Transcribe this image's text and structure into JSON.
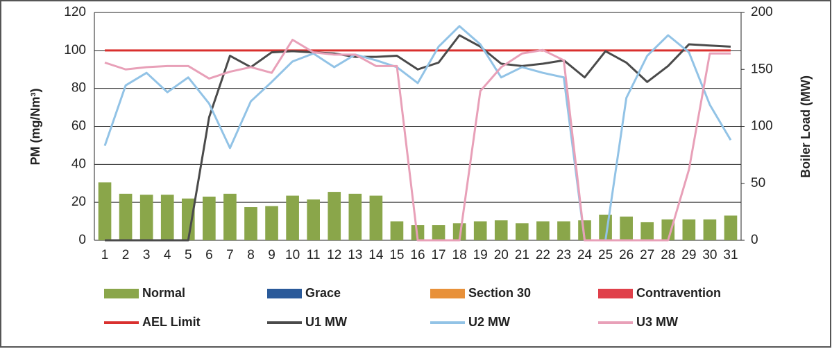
{
  "chart_data": {
    "type": "combo",
    "y_label": "PM (mg/Nm³)",
    "y2_label": "Boiler Load (MW)",
    "categories": [
      "1",
      "2",
      "3",
      "4",
      "5",
      "6",
      "7",
      "8",
      "9",
      "10",
      "11",
      "12",
      "13",
      "14",
      "15",
      "16",
      "17",
      "18",
      "19",
      "20",
      "21",
      "22",
      "23",
      "24",
      "25",
      "26",
      "27",
      "28",
      "29",
      "30",
      "31"
    ],
    "ylim": [
      0,
      120
    ],
    "yticks": [
      0,
      20,
      40,
      60,
      80,
      100,
      120
    ],
    "y2lim": [
      0,
      200
    ],
    "y2ticks": [
      0,
      50,
      100,
      150,
      200
    ],
    "grid": true,
    "series": [
      {
        "name": "Normal",
        "type": "bar",
        "color": "#8aa64a",
        "values": [
          30.5,
          24.5,
          24,
          24,
          22,
          23,
          24.5,
          17.5,
          18,
          23.5,
          21.5,
          25.5,
          24.5,
          23.5,
          10,
          8,
          8,
          9,
          10,
          10.5,
          9,
          10,
          10,
          10.5,
          13.5,
          12.5,
          9.5,
          11,
          11,
          11,
          13
        ]
      },
      {
        "name": "Grace",
        "type": "bar",
        "color": "#2a5a9a",
        "values": [
          null,
          null,
          null,
          null,
          null,
          null,
          null,
          null,
          null,
          null,
          null,
          null,
          null,
          null,
          null,
          null,
          null,
          null,
          null,
          null,
          null,
          null,
          null,
          null,
          null,
          null,
          null,
          null,
          null,
          null,
          null
        ]
      },
      {
        "name": "Section 30",
        "type": "bar",
        "color": "#e8913a",
        "values": [
          null,
          null,
          null,
          null,
          null,
          null,
          null,
          null,
          null,
          null,
          null,
          null,
          null,
          null,
          null,
          null,
          null,
          null,
          null,
          null,
          null,
          null,
          null,
          null,
          null,
          null,
          null,
          null,
          null,
          null,
          null
        ]
      },
      {
        "name": "Contravention",
        "type": "bar",
        "color": "#e0404a",
        "values": [
          null,
          null,
          null,
          null,
          null,
          null,
          null,
          null,
          null,
          null,
          null,
          null,
          null,
          null,
          null,
          null,
          null,
          null,
          null,
          null,
          null,
          null,
          null,
          null,
          null,
          null,
          null,
          null,
          null,
          null,
          null
        ]
      },
      {
        "name": "AEL Limit",
        "type": "line",
        "color": "#d9302e",
        "values": [
          100,
          100,
          100,
          100,
          100,
          100,
          100,
          100,
          100,
          100,
          100,
          100,
          100,
          100,
          100,
          100,
          100,
          100,
          100,
          100,
          100,
          100,
          100,
          100,
          100,
          100,
          100,
          100,
          100,
          100,
          100
        ]
      },
      {
        "name": "U1 MW",
        "type": "line",
        "axis": "y2",
        "color": "#4a4a4a",
        "values": [
          0,
          0,
          0,
          0,
          0,
          108,
          162,
          152,
          165,
          166,
          165,
          164,
          161,
          161,
          162,
          150,
          156,
          180,
          170,
          155,
          153,
          155,
          158,
          143,
          166,
          156,
          139,
          153,
          172,
          171,
          170
        ]
      },
      {
        "name": "U2 MW",
        "type": "line",
        "axis": "y2",
        "color": "#92c3e6",
        "values": [
          83,
          136,
          147,
          130,
          143,
          120,
          81,
          122,
          139,
          157,
          164,
          152,
          163,
          158,
          152,
          138,
          170,
          188,
          172,
          143,
          152,
          147,
          143,
          0,
          0,
          125,
          162,
          180,
          165,
          119,
          88
        ]
      },
      {
        "name": "U3 MW",
        "type": "line",
        "axis": "y2",
        "color": "#e8a0b8",
        "values": [
          156,
          150,
          152,
          153,
          153,
          142,
          148,
          152,
          147,
          176,
          165,
          163,
          163,
          153,
          153,
          0,
          0,
          0,
          131,
          152,
          164,
          167,
          158,
          0,
          0,
          0,
          0,
          0,
          62,
          164,
          164
        ]
      }
    ]
  }
}
